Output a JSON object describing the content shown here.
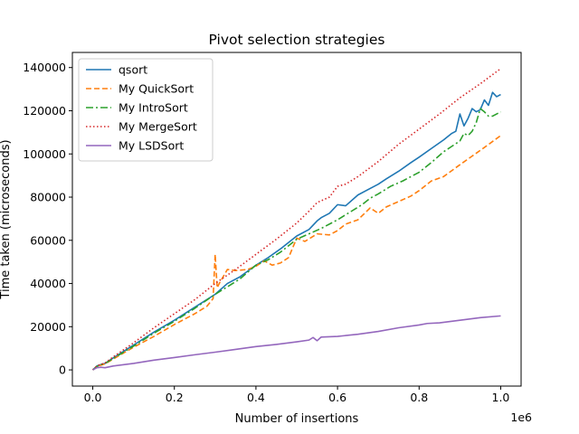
{
  "chart_data": {
    "type": "line",
    "title": "Pivot selection strategies",
    "xlabel": "Number of insertions",
    "ylabel": "Time taken (microseconds)",
    "x_offset_label": "1e6",
    "xlim": [
      -0.05,
      1.05
    ],
    "ylim": [
      -7500,
      147000
    ],
    "x_ticks": [
      0.0,
      0.2,
      0.4,
      0.6,
      0.8,
      1.0
    ],
    "x_tick_labels": [
      "0.0",
      "0.2",
      "0.4",
      "0.6",
      "0.8",
      "1.0"
    ],
    "y_ticks": [
      0,
      20000,
      40000,
      60000,
      80000,
      100000,
      120000,
      140000
    ],
    "y_tick_labels": [
      "0",
      "20000",
      "40000",
      "60000",
      "80000",
      "100000",
      "120000",
      "140000"
    ],
    "grid": false,
    "legend_position": "top-left",
    "series": [
      {
        "name": "qsort",
        "color": "#1f77b4",
        "dash": "solid",
        "x": [
          0,
          0.01,
          0.02,
          0.03,
          0.05,
          0.1,
          0.15,
          0.2,
          0.25,
          0.3,
          0.33,
          0.36,
          0.4,
          0.43,
          0.46,
          0.5,
          0.53,
          0.55,
          0.56,
          0.58,
          0.6,
          0.62,
          0.65,
          0.68,
          0.7,
          0.72,
          0.75,
          0.78,
          0.8,
          0.83,
          0.86,
          0.88,
          0.89,
          0.9,
          0.91,
          0.92,
          0.93,
          0.94,
          0.95,
          0.96,
          0.97,
          0.98,
          0.99,
          1.0
        ],
        "y": [
          0,
          1800,
          2500,
          3000,
          5500,
          11500,
          17500,
          23000,
          29000,
          35000,
          40000,
          43000,
          48500,
          52000,
          56000,
          62000,
          65000,
          69000,
          70500,
          72500,
          76500,
          76000,
          81000,
          84000,
          86000,
          88500,
          92000,
          96000,
          98500,
          102500,
          106500,
          109500,
          110500,
          118500,
          113000,
          116500,
          121000,
          119500,
          120500,
          125000,
          122500,
          128500,
          126500,
          127500
        ]
      },
      {
        "name": "My QuickSort",
        "color": "#ff7f0e",
        "dash": "6,3",
        "x": [
          0,
          0.01,
          0.02,
          0.03,
          0.05,
          0.1,
          0.15,
          0.2,
          0.25,
          0.28,
          0.295,
          0.3,
          0.305,
          0.31,
          0.33,
          0.35,
          0.38,
          0.4,
          0.42,
          0.44,
          0.46,
          0.48,
          0.5,
          0.52,
          0.55,
          0.58,
          0.6,
          0.62,
          0.65,
          0.68,
          0.7,
          0.72,
          0.75,
          0.78,
          0.8,
          0.83,
          0.86,
          0.9,
          0.93,
          0.96,
          1.0
        ],
        "y": [
          0,
          1500,
          2200,
          2800,
          5000,
          10500,
          15500,
          21000,
          26000,
          29500,
          33000,
          53500,
          38000,
          40000,
          46500,
          46000,
          46500,
          48000,
          50500,
          48500,
          49500,
          52000,
          61000,
          59500,
          63000,
          62500,
          64500,
          67500,
          69500,
          75000,
          72500,
          75500,
          78000,
          80500,
          83000,
          87500,
          89500,
          95000,
          99000,
          103000,
          108500
        ]
      },
      {
        "name": "My IntroSort",
        "color": "#2ca02c",
        "dash": "8,3,2,3",
        "x": [
          0,
          0.01,
          0.02,
          0.03,
          0.05,
          0.1,
          0.15,
          0.2,
          0.25,
          0.3,
          0.33,
          0.36,
          0.4,
          0.43,
          0.46,
          0.5,
          0.53,
          0.56,
          0.6,
          0.63,
          0.66,
          0.68,
          0.7,
          0.73,
          0.76,
          0.78,
          0.8,
          0.83,
          0.86,
          0.88,
          0.9,
          0.91,
          0.92,
          0.93,
          0.94,
          0.95,
          0.96,
          0.97,
          0.98,
          0.99,
          1.0
        ],
        "y": [
          0,
          1600,
          2400,
          2900,
          5300,
          11000,
          17000,
          22500,
          28500,
          35000,
          38500,
          42000,
          48500,
          51000,
          54500,
          60500,
          63000,
          65500,
          69500,
          73000,
          76500,
          79500,
          81500,
          85000,
          87500,
          89500,
          91500,
          96000,
          101000,
          103500,
          106000,
          109500,
          108500,
          110500,
          114500,
          121000,
          119500,
          117500,
          117500,
          118500,
          119500
        ]
      },
      {
        "name": "My MergeSort",
        "color": "#d62728",
        "dash": "1.5,2.5",
        "x": [
          0,
          0.01,
          0.02,
          0.03,
          0.05,
          0.1,
          0.15,
          0.2,
          0.25,
          0.3,
          0.35,
          0.4,
          0.45,
          0.5,
          0.53,
          0.55,
          0.58,
          0.6,
          0.62,
          0.65,
          0.7,
          0.75,
          0.8,
          0.85,
          0.9,
          0.95,
          1.0
        ],
        "y": [
          0,
          1800,
          2600,
          3200,
          6000,
          12500,
          19500,
          26000,
          32500,
          40000,
          46500,
          53500,
          60500,
          68000,
          73500,
          77500,
          80000,
          85000,
          86000,
          89500,
          96500,
          104500,
          111500,
          118500,
          126000,
          132500,
          139500
        ]
      },
      {
        "name": "My LSDSort",
        "color": "#9467bd",
        "dash": "solid",
        "x": [
          0,
          0.01,
          0.02,
          0.03,
          0.05,
          0.1,
          0.15,
          0.2,
          0.25,
          0.3,
          0.35,
          0.4,
          0.45,
          0.5,
          0.53,
          0.54,
          0.55,
          0.56,
          0.6,
          0.65,
          0.7,
          0.75,
          0.8,
          0.82,
          0.85,
          0.9,
          0.95,
          1.0
        ],
        "y": [
          0,
          1000,
          1200,
          1000,
          1800,
          3000,
          4500,
          5700,
          7000,
          8200,
          9500,
          10800,
          11800,
          13000,
          13800,
          15000,
          13500,
          15200,
          15500,
          16500,
          17800,
          19500,
          20800,
          21500,
          21800,
          23000,
          24200,
          25000
        ]
      }
    ]
  }
}
